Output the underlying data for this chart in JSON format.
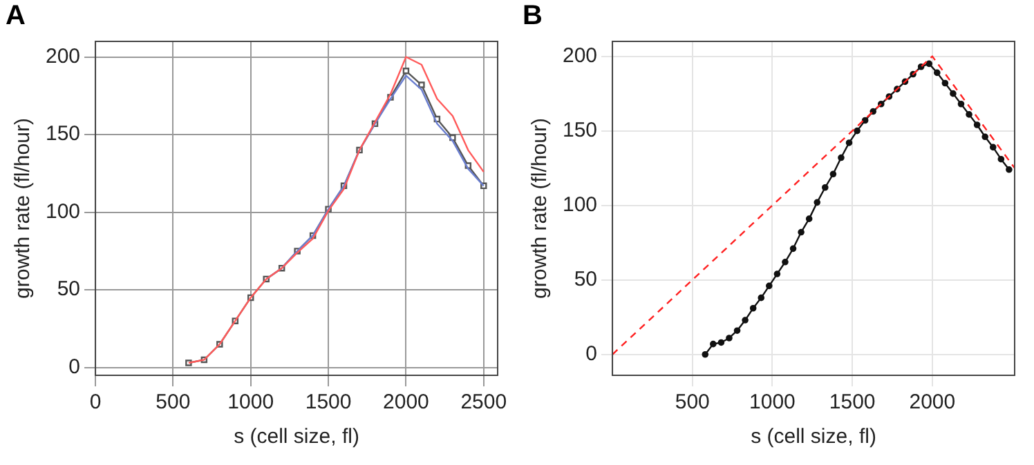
{
  "chart_data": [
    {
      "type": "line",
      "title": "A",
      "xlabel": "s (cell size, fl)",
      "ylabel": "growth rate (fl/hour)",
      "xlim": [
        0,
        2590
      ],
      "ylim": [
        -5,
        210
      ],
      "xticks": [
        0,
        500,
        1000,
        1500,
        2000,
        2500
      ],
      "yticks": [
        0,
        50,
        100,
        150,
        200
      ],
      "grid": true,
      "legend": false,
      "series": [
        {
          "color": "#ff5a5a",
          "marker": "none",
          "x": [
            600,
            700,
            800,
            900,
            1000,
            1100,
            1200,
            1300,
            1400,
            1500,
            1600,
            1700,
            1800,
            1900,
            2000,
            2100,
            2200,
            2300,
            2400,
            2500
          ],
          "values": [
            3,
            5,
            15,
            30,
            45,
            57,
            64,
            74,
            83,
            101,
            115,
            140,
            158,
            176,
            200,
            195,
            173,
            162,
            140,
            126
          ]
        },
        {
          "color": "#6a7ed0",
          "marker": "none",
          "x": [
            1100,
            1200,
            1300,
            1400,
            1500,
            1600,
            1700,
            1800,
            1900,
            2000,
            2100,
            2200,
            2300,
            2400,
            2500
          ],
          "values": [
            57,
            64,
            75,
            85,
            102,
            117,
            140,
            157,
            173,
            188,
            179,
            157,
            146,
            128,
            117
          ]
        },
        {
          "color": "#555555",
          "marker": "square",
          "x": [
            600,
            700,
            800,
            900,
            1000,
            1100,
            1200,
            1300,
            1400,
            1500,
            1600,
            1700,
            1800,
            1900,
            2000,
            2100,
            2200,
            2300,
            2400,
            2500
          ],
          "values": [
            3,
            5,
            15,
            30,
            45,
            57,
            64,
            75,
            85,
            102,
            117,
            140,
            157,
            174,
            191,
            182,
            160,
            148,
            130,
            117
          ]
        }
      ]
    },
    {
      "type": "line",
      "title": "B",
      "xlabel": "s (cell size, fl)",
      "ylabel": "growth rate (fl/hour)",
      "xlim": [
        0,
        2515
      ],
      "ylim": [
        -14,
        210
      ],
      "xticks": [
        500,
        1000,
        1500,
        2000
      ],
      "yticks": [
        0,
        50,
        100,
        150,
        200
      ],
      "grid": true,
      "legend": false,
      "series": [
        {
          "color": "#ff2020",
          "marker": "none",
          "line_style": "dashed",
          "x": [
            0,
            2000,
            2515
          ],
          "values": [
            0,
            200,
            125
          ]
        },
        {
          "color": "#111111",
          "marker": "circle",
          "x": [
            580,
            630,
            680,
            730,
            780,
            830,
            880,
            930,
            980,
            1030,
            1080,
            1130,
            1180,
            1230,
            1280,
            1330,
            1380,
            1430,
            1480,
            1530,
            1580,
            1630,
            1680,
            1730,
            1780,
            1830,
            1880,
            1930,
            1980,
            2030,
            2080,
            2130,
            2180,
            2230,
            2280,
            2330,
            2380,
            2430,
            2480
          ],
          "values": [
            0,
            7,
            8,
            11,
            16,
            23,
            31,
            38,
            46,
            54,
            62,
            71,
            82,
            91,
            102,
            112,
            121,
            132,
            142,
            150,
            157,
            163,
            168,
            173,
            178,
            183,
            188,
            193,
            195,
            189,
            182,
            175,
            168,
            161,
            154,
            146,
            139,
            131,
            124
          ]
        }
      ]
    }
  ]
}
